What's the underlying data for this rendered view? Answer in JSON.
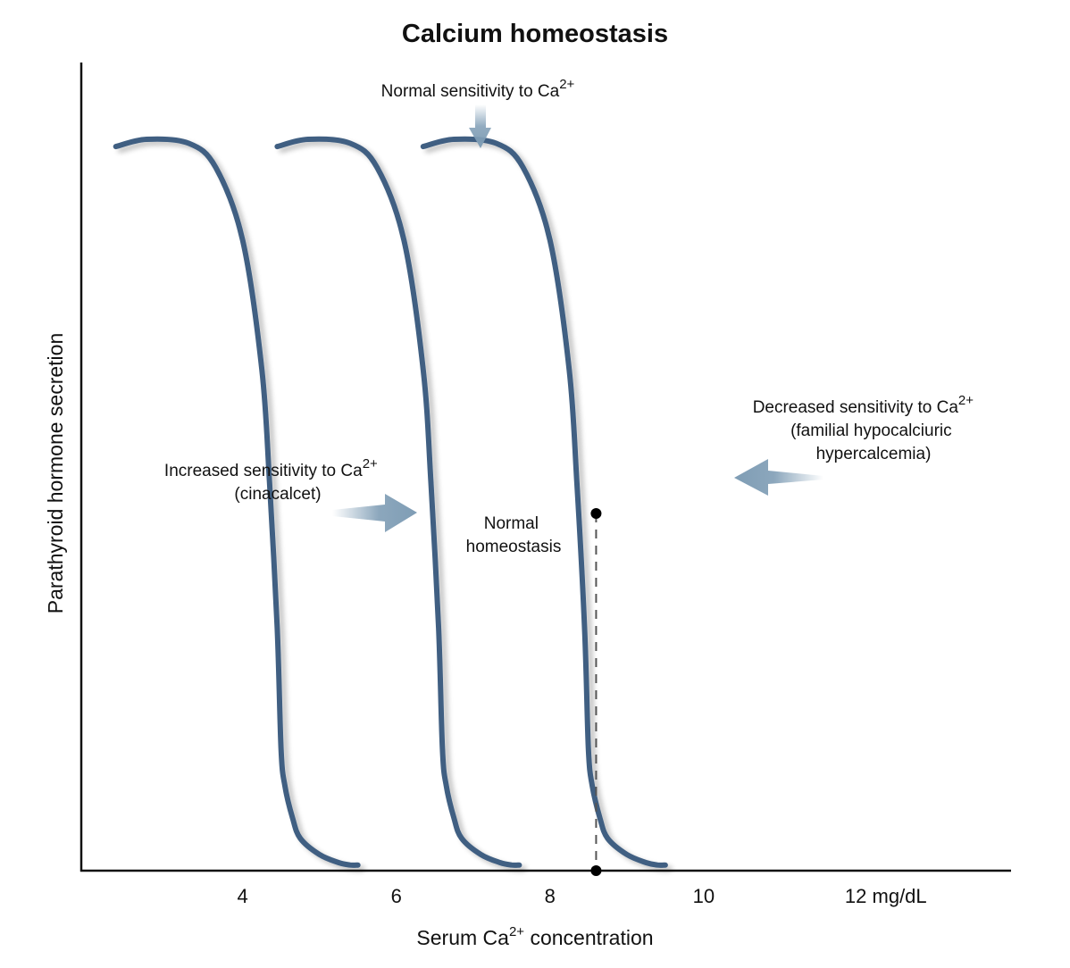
{
  "chart_data": {
    "type": "line",
    "title": "Calcium homeostasis",
    "xlabel": {
      "prefix": "Serum Ca",
      "sup": "2+",
      "suffix": " concentration"
    },
    "ylabel": "Parathyroid hormone secretion",
    "x_ticks": [
      {
        "value": 4,
        "label": "4"
      },
      {
        "value": 6,
        "label": "6"
      },
      {
        "value": 8,
        "label": "8"
      },
      {
        "value": 10,
        "label": "10"
      },
      {
        "value": 12,
        "label": "12 mg/dL"
      }
    ],
    "xlim": [
      1.9,
      14.0
    ],
    "ylim": [
      0,
      100
    ],
    "grid": false,
    "series": [
      {
        "id": "increased",
        "shift": -2.1
      },
      {
        "id": "normal",
        "shift": 0
      },
      {
        "id": "decreased",
        "shift": 1.9
      }
    ],
    "curve_shape": {
      "x": [
        -4.15,
        -3.75,
        -3.2,
        -2.85,
        -2.5,
        -2.25,
        -2.15,
        -2.05,
        -2.0,
        -1.95,
        -1.85,
        -1.75,
        -1.5,
        -1.25,
        -1.1,
        -1.0
      ],
      "y": [
        89.6,
        90.5,
        90.0,
        87.0,
        78.0,
        62.0,
        48.0,
        30.0,
        15.0,
        10.5,
        6.5,
        4.0,
        2.0,
        1.0,
        0.7,
        0.7
      ],
      "base_x": 8.6
    },
    "colors": {
      "curve": "#3f5f82",
      "arrow": "#7f9db5",
      "axis": "#111111",
      "dashed": "#555555"
    },
    "normal_point": {
      "x": 8.6,
      "y": 44.2,
      "label_lines": [
        "Normal",
        "homeostasis"
      ]
    },
    "annotations": {
      "normal_sensitivity": {
        "text": "Normal sensitivity to Ca",
        "sup": "2+"
      },
      "increased_sensitivity": {
        "text": "Increased sensitivity to Ca",
        "sup": "2+",
        "line2": "(cinacalcet)"
      },
      "decreased_sensitivity": {
        "text": "Decreased sensitivity to Ca",
        "sup": "2+",
        "line2": "(familial hypocalciuric",
        "line3": "hypercalcemia)"
      }
    }
  }
}
